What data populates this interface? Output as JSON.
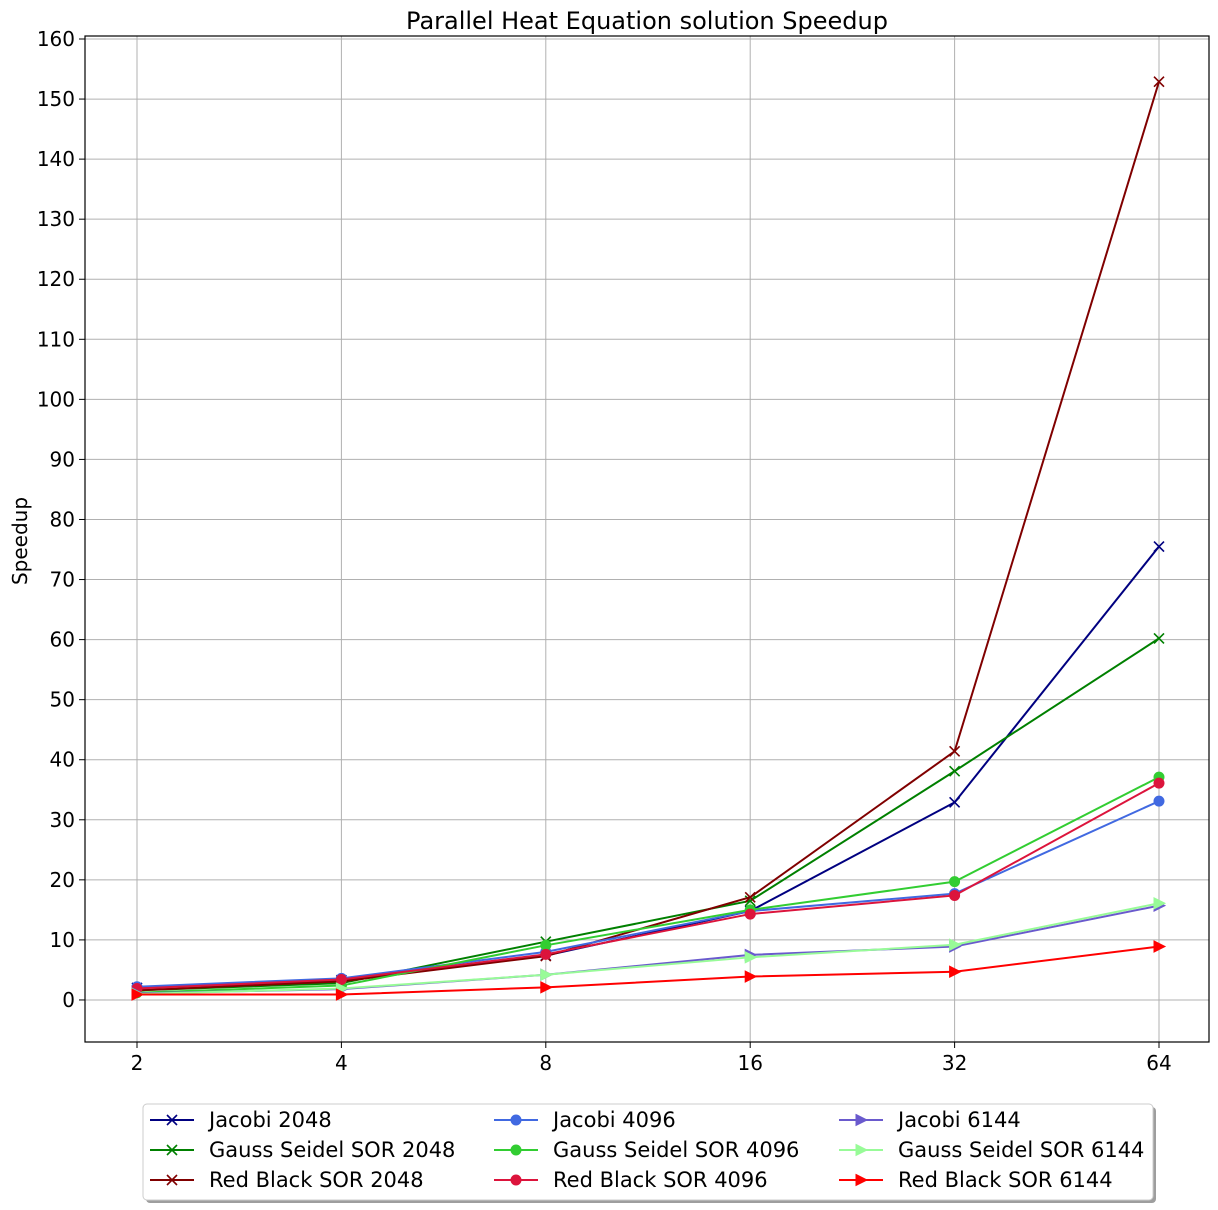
{
  "chart_data": {
    "type": "line",
    "title": "Parallel Heat Equation solution Speedup",
    "xlabel": "",
    "ylabel": "Speedup",
    "x": [
      2,
      4,
      8,
      16,
      32,
      64
    ],
    "x_scale": "log2",
    "x_tick_labels": [
      "2",
      "4",
      "8",
      "16",
      "32",
      "64"
    ],
    "ylim": [
      -7,
      160.5
    ],
    "y_ticks": [
      0,
      10,
      20,
      30,
      40,
      50,
      60,
      70,
      80,
      90,
      100,
      110,
      120,
      130,
      140,
      150,
      160
    ],
    "grid": true,
    "legend_placement": "bottom-center",
    "series": [
      {
        "name": "Jacobi 2048",
        "color": "#000080",
        "marker": "x",
        "values": [
          2.0,
          3.3,
          7.4,
          14.8,
          32.9,
          75.5
        ]
      },
      {
        "name": "Gauss Seidel SOR 2048",
        "color": "#008000",
        "marker": "x",
        "values": [
          1.6,
          2.8,
          9.7,
          16.5,
          38.1,
          60.2
        ]
      },
      {
        "name": "Red Black SOR 2048",
        "color": "#800000",
        "marker": "x",
        "values": [
          1.6,
          3.1,
          7.3,
          17.1,
          41.4,
          152.9
        ]
      },
      {
        "name": "Jacobi 4096",
        "color": "#4169e1",
        "marker": "o",
        "values": [
          2.2,
          3.6,
          8.0,
          14.8,
          17.7,
          33.1
        ]
      },
      {
        "name": "Gauss Seidel SOR 4096",
        "color": "#32cd32",
        "marker": "o",
        "values": [
          1.2,
          2.4,
          9.1,
          15.0,
          19.7,
          37.1
        ]
      },
      {
        "name": "Red Black SOR 4096",
        "color": "#dc143c",
        "marker": "o",
        "values": [
          1.9,
          3.4,
          7.6,
          14.3,
          17.4,
          36.1
        ]
      },
      {
        "name": "Jacobi 6144",
        "color": "#6a5acd",
        "marker": ">",
        "values": [
          1.1,
          1.8,
          4.2,
          7.5,
          8.9,
          15.7
        ]
      },
      {
        "name": "Gauss Seidel SOR 6144",
        "color": "#98fb98",
        "marker": ">",
        "values": [
          1.0,
          1.9,
          4.2,
          7.1,
          9.2,
          16.1
        ]
      },
      {
        "name": "Red Black SOR 6144",
        "color": "#ff0000",
        "marker": ">",
        "values": [
          0.9,
          0.9,
          2.1,
          3.9,
          4.7,
          8.9
        ]
      }
    ]
  }
}
